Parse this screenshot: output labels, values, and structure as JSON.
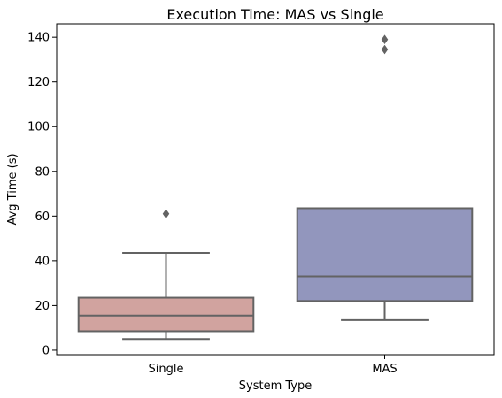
{
  "chart_data": {
    "type": "box",
    "title": "Execution Time: MAS vs Single",
    "xlabel": "System Type",
    "ylabel": "Avg Time (s)",
    "ylim": [
      -2,
      146
    ],
    "yticks": [
      0,
      20,
      40,
      60,
      80,
      100,
      120,
      140
    ],
    "grid": false,
    "categories": [
      "Single",
      "MAS"
    ],
    "boxes": [
      {
        "category": "Single",
        "whisker_low": 5,
        "q1": 8.5,
        "median": 15.5,
        "q3": 23.5,
        "whisker_high": 43.5,
        "outliers": [
          61
        ],
        "color": "#d1a39f"
      },
      {
        "category": "MAS",
        "whisker_low": 13.5,
        "q1": 22,
        "median": 33,
        "q3": 63.5,
        "whisker_high": 63.5,
        "outliers": [
          134.5,
          139
        ],
        "color": "#9296bd"
      }
    ],
    "line_color": "#636363"
  }
}
